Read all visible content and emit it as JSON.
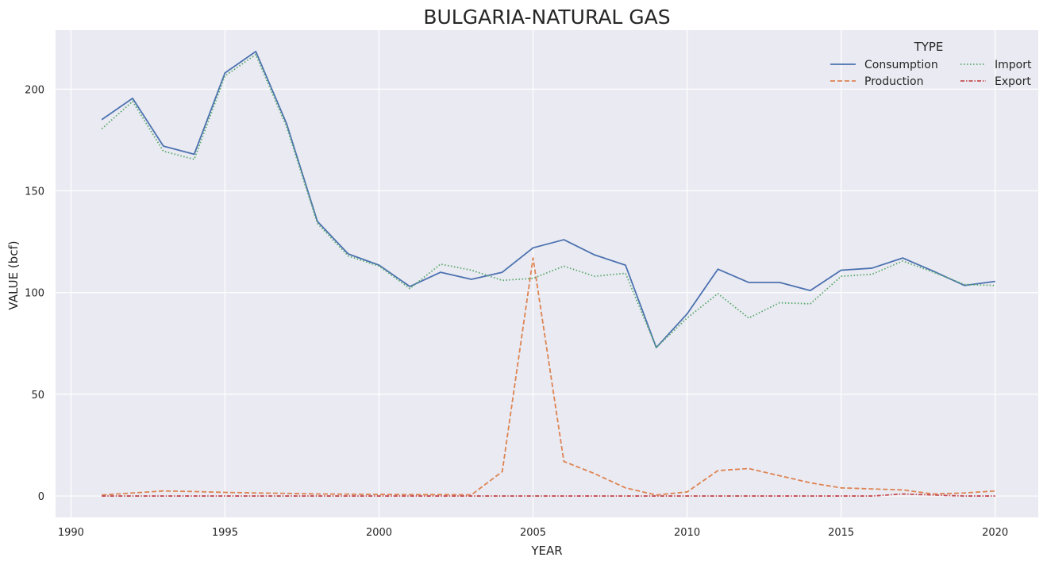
{
  "chart_data": {
    "type": "line",
    "title": "BULGARIA-NATURAL GAS",
    "xlabel": "YEAR",
    "ylabel": "VALUE (bcf)",
    "xlim": [
      1989.5,
      2021.4
    ],
    "ylim": [
      -10.5,
      229
    ],
    "xticks": [
      1990,
      1995,
      2000,
      2005,
      2010,
      2015,
      2020
    ],
    "yticks": [
      0,
      50,
      100,
      150,
      200
    ],
    "grid": true,
    "background": "#eaeaf2",
    "legend": {
      "title": "TYPE",
      "placement": "top-right",
      "columns": 2
    },
    "x": [
      1991,
      1992,
      1993,
      1994,
      1995,
      1996,
      1997,
      1998,
      1999,
      2000,
      2001,
      2002,
      2003,
      2004,
      2005,
      2006,
      2007,
      2008,
      2009,
      2010,
      2011,
      2012,
      2013,
      2014,
      2015,
      2016,
      2017,
      2018,
      2019,
      2020
    ],
    "series": [
      {
        "name": "Consumption",
        "color": "#4c72b0",
        "dash": "solid",
        "values": [
          185,
          195.5,
          172,
          168,
          208,
          218.5,
          183,
          135,
          119,
          113.5,
          103,
          110,
          106.5,
          110,
          122,
          126,
          118.5,
          113.5,
          73,
          89.5,
          111.5,
          105,
          105,
          101,
          111,
          112,
          117,
          110.5,
          103.5,
          105.5
        ]
      },
      {
        "name": "Production",
        "color": "#dd8452",
        "dash": "dashed",
        "values": [
          0.5,
          1.5,
          2.5,
          2.2,
          1.8,
          1.5,
          1.3,
          1,
          0.9,
          0.8,
          0.7,
          0.7,
          0.6,
          12,
          117,
          17,
          11,
          4,
          0.5,
          2,
          12.5,
          13.5,
          10,
          6.5,
          4,
          3.5,
          3,
          1,
          1.5,
          2.5
        ]
      },
      {
        "name": "Import",
        "color": "#55a868",
        "dash": "dotted",
        "values": [
          180.5,
          194,
          169.5,
          165.5,
          206.5,
          217,
          181.5,
          134,
          118,
          113,
          102,
          114,
          111,
          106,
          107,
          113,
          108,
          109.5,
          73,
          87.5,
          99.5,
          87.5,
          95,
          94.5,
          108,
          109,
          115.5,
          110,
          104,
          103.5
        ]
      },
      {
        "name": "Export",
        "color": "#c44e52",
        "dash": "dashdot",
        "values": [
          0,
          0,
          0,
          0,
          0,
          0,
          0,
          0,
          0,
          0,
          0,
          0,
          0,
          0,
          0,
          0,
          0,
          0,
          0,
          0,
          0,
          0,
          0,
          0,
          0,
          0,
          1,
          0.5,
          0,
          0
        ]
      }
    ]
  }
}
